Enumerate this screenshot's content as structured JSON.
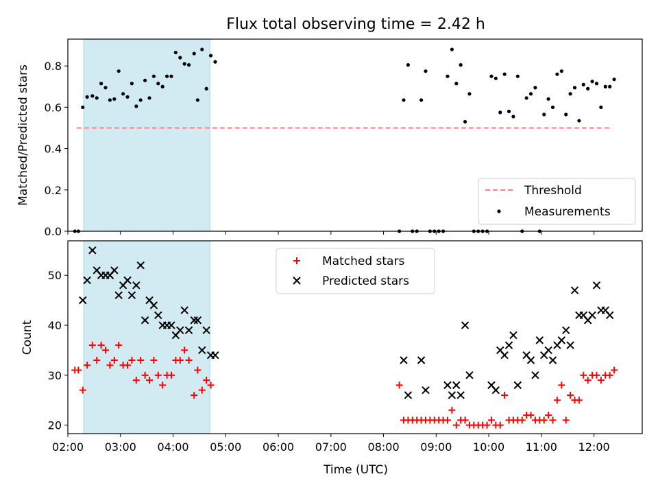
{
  "chart_data": [
    {
      "type": "scatter",
      "title": "Flux total observing time = 2.42 h",
      "ylabel": "Matched/Predicted stars",
      "xlabel": "",
      "xlim": [
        "02:00",
        "12:55"
      ],
      "ylim": [
        0.0,
        0.93
      ],
      "yticks": [
        "0.0",
        "0.2",
        "0.4",
        "0.6",
        "0.8"
      ],
      "shaded_interval": {
        "start": "02:18",
        "end": "04:42",
        "color": "#add8e6"
      },
      "threshold": {
        "name": "Threshold",
        "value": 0.5,
        "x_start": "02:10",
        "x_end": "12:18",
        "color": "#ff7f7f",
        "style": "dashed"
      },
      "legend": {
        "placement": "lower-right",
        "entries": [
          "Threshold",
          "Measurements"
        ]
      },
      "series": [
        {
          "name": "Measurements",
          "color": "#000000",
          "marker": "dot",
          "points": [
            [
              "02:08",
              0
            ],
            [
              "02:12",
              0
            ],
            [
              "02:17",
              0.6
            ],
            [
              "02:22",
              0.65
            ],
            [
              "02:28",
              0.655
            ],
            [
              "02:33",
              0.645
            ],
            [
              "02:38",
              0.715
            ],
            [
              "02:43",
              0.695
            ],
            [
              "02:48",
              0.635
            ],
            [
              "02:53",
              0.64
            ],
            [
              "02:58",
              0.775
            ],
            [
              "03:03",
              0.665
            ],
            [
              "03:08",
              0.65
            ],
            [
              "03:13",
              0.715
            ],
            [
              "03:18",
              0.605
            ],
            [
              "03:23",
              0.635
            ],
            [
              "03:28",
              0.73
            ],
            [
              "03:33",
              0.645
            ],
            [
              "03:38",
              0.75
            ],
            [
              "03:43",
              0.715
            ],
            [
              "03:48",
              0.7
            ],
            [
              "03:53",
              0.75
            ],
            [
              "03:58",
              0.75
            ],
            [
              "04:03",
              0.865
            ],
            [
              "04:08",
              0.84
            ],
            [
              "04:13",
              0.81
            ],
            [
              "04:18",
              0.805
            ],
            [
              "04:24",
              0.86
            ],
            [
              "04:28",
              0.635
            ],
            [
              "04:33",
              0.88
            ],
            [
              "04:38",
              0.69
            ],
            [
              "04:43",
              0.85
            ],
            [
              "04:48",
              0.82
            ],
            [
              "08:18",
              0
            ],
            [
              "08:23",
              0.635
            ],
            [
              "08:28",
              0.805
            ],
            [
              "08:33",
              0
            ],
            [
              "08:38",
              0
            ],
            [
              "08:43",
              0.635
            ],
            [
              "08:48",
              0.775
            ],
            [
              "08:53",
              0
            ],
            [
              "08:58",
              0
            ],
            [
              "09:03",
              0
            ],
            [
              "09:08",
              0
            ],
            [
              "09:13",
              0.75
            ],
            [
              "09:18",
              0.88
            ],
            [
              "09:23",
              0.715
            ],
            [
              "09:28",
              0.805
            ],
            [
              "09:33",
              0.53
            ],
            [
              "09:38",
              0.665
            ],
            [
              "09:43",
              0
            ],
            [
              "09:48",
              0
            ],
            [
              "09:53",
              0
            ],
            [
              "09:58",
              0
            ],
            [
              "10:03",
              0.75
            ],
            [
              "10:08",
              0.74
            ],
            [
              "10:13",
              0.575
            ],
            [
              "10:18",
              0.76
            ],
            [
              "10:23",
              0.58
            ],
            [
              "10:28",
              0.555
            ],
            [
              "10:33",
              0.75
            ],
            [
              "10:38",
              0
            ],
            [
              "10:43",
              0.645
            ],
            [
              "10:48",
              0.665
            ],
            [
              "10:53",
              0.695
            ],
            [
              "10:58",
              0
            ],
            [
              "11:03",
              0.565
            ],
            [
              "11:08",
              0.64
            ],
            [
              "11:13",
              0.6
            ],
            [
              "11:18",
              0.76
            ],
            [
              "11:23",
              0.775
            ],
            [
              "11:28",
              0.565
            ],
            [
              "11:33",
              0.665
            ],
            [
              "11:38",
              0.695
            ],
            [
              "11:43",
              0.535
            ],
            [
              "11:48",
              0.71
            ],
            [
              "11:53",
              0.69
            ],
            [
              "11:58",
              0.725
            ],
            [
              "12:03",
              0.715
            ],
            [
              "12:08",
              0.6
            ],
            [
              "12:13",
              0.7
            ],
            [
              "12:18",
              0.7
            ],
            [
              "12:23",
              0.735
            ]
          ]
        }
      ]
    },
    {
      "type": "scatter",
      "title": "",
      "ylabel": "Count",
      "xlabel": "Time (UTC)",
      "xlim": [
        "02:00",
        "12:55"
      ],
      "ylim": [
        18.3,
        56.9
      ],
      "yticks": [
        "20",
        "30",
        "40",
        "50"
      ],
      "xticks": [
        "02:00",
        "03:00",
        "04:00",
        "05:00",
        "06:00",
        "07:00",
        "08:00",
        "09:00",
        "10:00",
        "11:00",
        "12:00"
      ],
      "shaded_interval": {
        "start": "02:18",
        "end": "04:42",
        "color": "#add8e6"
      },
      "legend": {
        "placement": "upper-center",
        "entries": [
          "Matched stars",
          "Predicted stars"
        ]
      },
      "series": [
        {
          "name": "Matched stars",
          "color": "#ff0000",
          "marker": "plus",
          "points": [
            [
              "02:08",
              31
            ],
            [
              "02:12",
              31
            ],
            [
              "02:17",
              27
            ],
            [
              "02:22",
              32
            ],
            [
              "02:28",
              36
            ],
            [
              "02:33",
              33
            ],
            [
              "02:38",
              36
            ],
            [
              "02:43",
              35
            ],
            [
              "02:48",
              32
            ],
            [
              "02:53",
              33
            ],
            [
              "02:58",
              36
            ],
            [
              "03:03",
              32
            ],
            [
              "03:08",
              32
            ],
            [
              "03:13",
              33
            ],
            [
              "03:18",
              29
            ],
            [
              "03:23",
              33
            ],
            [
              "03:28",
              30
            ],
            [
              "03:33",
              29
            ],
            [
              "03:38",
              33
            ],
            [
              "03:43",
              30
            ],
            [
              "03:48",
              28
            ],
            [
              "03:53",
              30
            ],
            [
              "03:58",
              30
            ],
            [
              "04:03",
              33
            ],
            [
              "04:08",
              33
            ],
            [
              "04:13",
              35
            ],
            [
              "04:18",
              33
            ],
            [
              "04:24",
              26
            ],
            [
              "04:28",
              31
            ],
            [
              "04:33",
              27
            ],
            [
              "04:38",
              29
            ],
            [
              "04:43",
              28
            ],
            [
              "08:18",
              28
            ],
            [
              "08:23",
              21
            ],
            [
              "08:28",
              21
            ],
            [
              "08:33",
              21
            ],
            [
              "08:38",
              21
            ],
            [
              "08:43",
              21
            ],
            [
              "08:48",
              21
            ],
            [
              "08:53",
              21
            ],
            [
              "08:58",
              21
            ],
            [
              "09:03",
              21
            ],
            [
              "09:08",
              21
            ],
            [
              "09:13",
              21
            ],
            [
              "09:18",
              23
            ],
            [
              "09:23",
              20
            ],
            [
              "09:28",
              21
            ],
            [
              "09:33",
              21
            ],
            [
              "09:38",
              20
            ],
            [
              "09:43",
              20
            ],
            [
              "09:48",
              20
            ],
            [
              "09:53",
              20
            ],
            [
              "09:58",
              20
            ],
            [
              "10:03",
              21
            ],
            [
              "10:08",
              20
            ],
            [
              "10:13",
              20
            ],
            [
              "10:18",
              26
            ],
            [
              "10:23",
              21
            ],
            [
              "10:28",
              21
            ],
            [
              "10:33",
              21
            ],
            [
              "10:38",
              21
            ],
            [
              "10:43",
              22
            ],
            [
              "10:48",
              22
            ],
            [
              "10:53",
              21
            ],
            [
              "10:58",
              21
            ],
            [
              "11:03",
              21
            ],
            [
              "11:08",
              22
            ],
            [
              "11:13",
              21
            ],
            [
              "11:18",
              25
            ],
            [
              "11:23",
              28
            ],
            [
              "11:28",
              21
            ],
            [
              "11:33",
              26
            ],
            [
              "11:38",
              25
            ],
            [
              "11:43",
              25
            ],
            [
              "11:48",
              30
            ],
            [
              "11:53",
              29
            ],
            [
              "11:58",
              30
            ],
            [
              "12:03",
              30
            ],
            [
              "12:08",
              29
            ],
            [
              "12:13",
              30
            ],
            [
              "12:18",
              30
            ],
            [
              "12:23",
              31
            ]
          ]
        },
        {
          "name": "Predicted stars",
          "color": "#000000",
          "marker": "x",
          "points": [
            [
              "02:17",
              45
            ],
            [
              "02:22",
              49
            ],
            [
              "02:28",
              55
            ],
            [
              "02:33",
              51
            ],
            [
              "02:38",
              50
            ],
            [
              "02:43",
              50
            ],
            [
              "02:48",
              50
            ],
            [
              "02:53",
              51
            ],
            [
              "02:58",
              46
            ],
            [
              "03:03",
              48
            ],
            [
              "03:08",
              49
            ],
            [
              "03:13",
              46
            ],
            [
              "03:18",
              48
            ],
            [
              "03:23",
              52
            ],
            [
              "03:28",
              41
            ],
            [
              "03:33",
              45
            ],
            [
              "03:38",
              44
            ],
            [
              "03:43",
              42
            ],
            [
              "03:48",
              40
            ],
            [
              "03:53",
              40
            ],
            [
              "03:58",
              40
            ],
            [
              "04:03",
              38
            ],
            [
              "04:08",
              39
            ],
            [
              "04:13",
              43
            ],
            [
              "04:18",
              39
            ],
            [
              "04:24",
              41
            ],
            [
              "04:28",
              41
            ],
            [
              "04:33",
              35
            ],
            [
              "04:38",
              39
            ],
            [
              "04:43",
              34
            ],
            [
              "04:48",
              34
            ],
            [
              "08:23",
              33
            ],
            [
              "08:28",
              26
            ],
            [
              "08:43",
              33
            ],
            [
              "08:48",
              27
            ],
            [
              "09:13",
              28
            ],
            [
              "09:18",
              26
            ],
            [
              "09:23",
              28
            ],
            [
              "09:28",
              26
            ],
            [
              "09:33",
              40
            ],
            [
              "09:38",
              30
            ],
            [
              "10:03",
              28
            ],
            [
              "10:08",
              27
            ],
            [
              "10:13",
              35
            ],
            [
              "10:18",
              34
            ],
            [
              "10:23",
              36
            ],
            [
              "10:28",
              38
            ],
            [
              "10:33",
              28
            ],
            [
              "10:43",
              34
            ],
            [
              "10:48",
              33
            ],
            [
              "10:53",
              30
            ],
            [
              "10:58",
              37
            ],
            [
              "11:03",
              34
            ],
            [
              "11:08",
              35
            ],
            [
              "11:13",
              33
            ],
            [
              "11:18",
              36
            ],
            [
              "11:23",
              37
            ],
            [
              "11:28",
              39
            ],
            [
              "11:33",
              36
            ],
            [
              "11:38",
              47
            ],
            [
              "11:43",
              42
            ],
            [
              "11:48",
              42
            ],
            [
              "11:53",
              41
            ],
            [
              "11:58",
              42
            ],
            [
              "12:03",
              48
            ],
            [
              "12:08",
              43
            ],
            [
              "12:13",
              43
            ],
            [
              "12:18",
              42
            ]
          ]
        }
      ]
    }
  ]
}
